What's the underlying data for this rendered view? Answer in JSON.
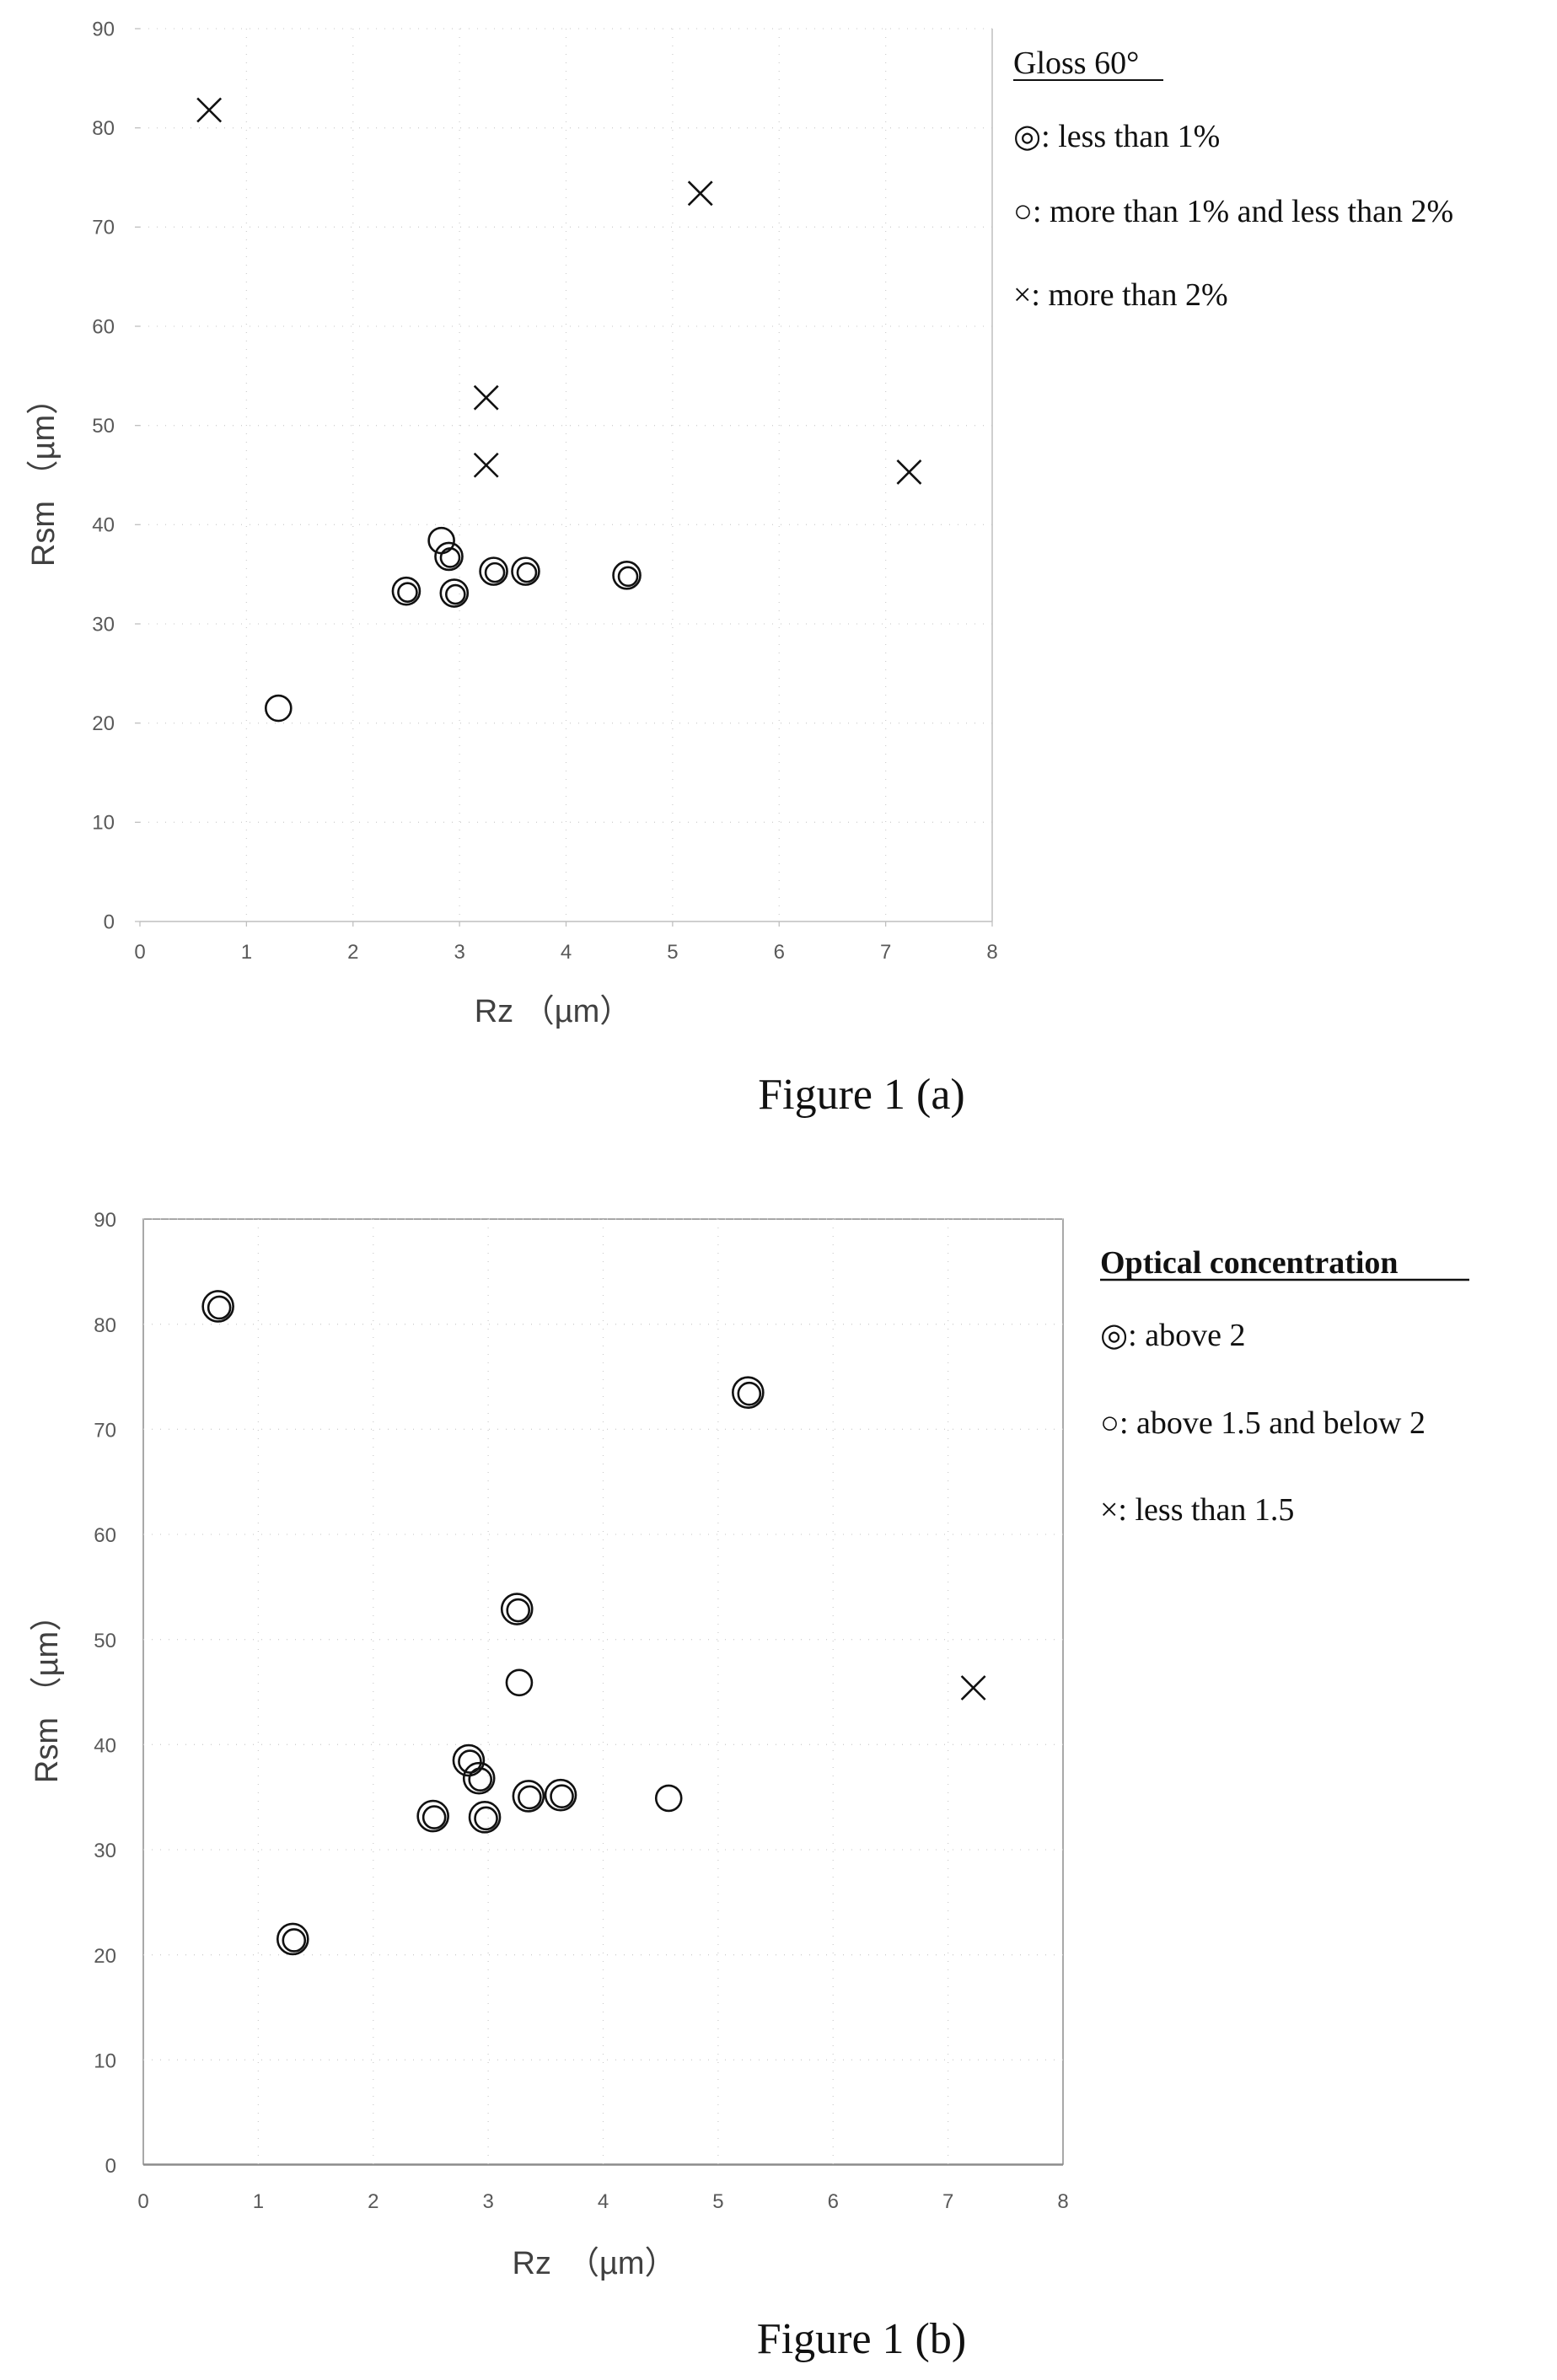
{
  "chart_data": [
    {
      "type": "scatter",
      "caption": "Figure 1 (a)",
      "xlabel": "Rz （µm）",
      "ylabel": "Rsm （µm）",
      "xlim": [
        0,
        8
      ],
      "ylim": [
        0,
        90
      ],
      "xticks": [
        "0",
        "1",
        "2",
        "3",
        "4",
        "5",
        "6",
        "7",
        "8"
      ],
      "yticks": [
        "0",
        "10",
        "20",
        "30",
        "40",
        "50",
        "60",
        "70",
        "80",
        "90"
      ],
      "grid": "dotted",
      "legend_position": "right",
      "legend_title": "Gloss 60°",
      "legend": [
        {
          "marker": "double-circle",
          "text": "◎: less than 1%"
        },
        {
          "marker": "circle",
          "text": "○: more than 1% and less than 2%"
        },
        {
          "marker": "cross",
          "text": "×: more than 2%"
        }
      ],
      "series": [
        {
          "marker": "double-circle",
          "points": [
            [
              2.5,
              33.3
            ],
            [
              2.95,
              33.1
            ],
            [
              2.9,
              36.8
            ],
            [
              3.32,
              35.3
            ],
            [
              3.62,
              35.3
            ],
            [
              4.57,
              34.9
            ]
          ]
        },
        {
          "marker": "circle",
          "points": [
            [
              1.3,
              21.5
            ],
            [
              2.83,
              38.4
            ]
          ]
        },
        {
          "marker": "cross",
          "points": [
            [
              0.65,
              81.8
            ],
            [
              5.26,
              73.4
            ],
            [
              3.25,
              52.8
            ],
            [
              3.25,
              46.0
            ],
            [
              7.22,
              45.3
            ]
          ]
        }
      ]
    },
    {
      "type": "scatter",
      "caption": "Figure 1 (b)",
      "xlabel": "Rz　（µm）",
      "ylabel": "Rsm （µm）",
      "xlim": [
        0,
        8
      ],
      "ylim": [
        0,
        90
      ],
      "xticks": [
        "0",
        "1",
        "2",
        "3",
        "4",
        "5",
        "6",
        "7",
        "8"
      ],
      "yticks": [
        "0",
        "10",
        "20",
        "30",
        "40",
        "50",
        "60",
        "70",
        "80",
        "90"
      ],
      "grid": "dotted",
      "legend_position": "right",
      "legend_title": "Optical concentration",
      "legend": [
        {
          "marker": "double-circle",
          "text": "◎: above 2"
        },
        {
          "marker": "circle",
          "text": "○: above 1.5 and below 2"
        },
        {
          "marker": "cross",
          "text": "×: less than 1.5"
        }
      ],
      "series": [
        {
          "marker": "double-circle",
          "points": [
            [
              0.65,
              81.7
            ],
            [
              5.26,
              73.5
            ],
            [
              3.25,
              52.9
            ],
            [
              1.3,
              21.5
            ],
            [
              2.83,
              38.5
            ],
            [
              2.92,
              36.8
            ],
            [
              2.52,
              33.2
            ],
            [
              2.97,
              33.1
            ],
            [
              3.35,
              35.1
            ],
            [
              3.63,
              35.2
            ]
          ]
        },
        {
          "marker": "circle",
          "points": [
            [
              3.27,
              45.9
            ],
            [
              4.57,
              34.9
            ]
          ]
        },
        {
          "marker": "cross",
          "points": [
            [
              7.22,
              45.4
            ]
          ]
        }
      ]
    }
  ]
}
